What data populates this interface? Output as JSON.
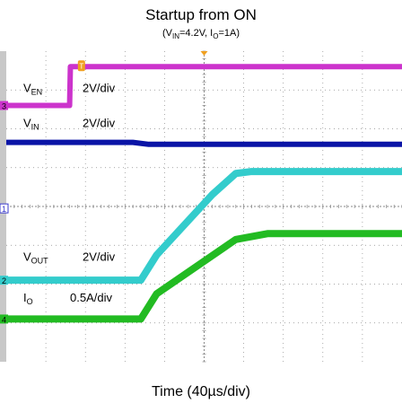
{
  "title": "Startup from ON",
  "subtitle": {
    "v_in_label": "V",
    "v_in_sub": "IN",
    "v_in_value": "=4.2V,  I",
    "i_o_sub": "O",
    "i_o_value": "=1A)",
    "open_paren": "("
  },
  "xlabel": "Time (40µs/div)",
  "chart_data": {
    "type": "line",
    "title": "Startup from ON",
    "xlabel": "Time (40µs/div)",
    "x_unit": "div",
    "xlim": [
      0,
      10
    ],
    "ylim": [
      0,
      8
    ],
    "grid": true,
    "series": [
      {
        "name": "V_EN",
        "color": "#cc33cc",
        "marker": "3",
        "label_main": "V",
        "label_sub": "EN",
        "scale": "2V/div",
        "x": [
          0,
          1.6,
          1.62,
          10
        ],
        "y": [
          6.6,
          6.6,
          7.6,
          7.6
        ]
      },
      {
        "name": "V_IN",
        "color": "#0a14a6",
        "marker": "",
        "label_main": "V",
        "label_sub": "IN",
        "scale": "2V/div",
        "x": [
          0,
          3.2,
          3.6,
          10
        ],
        "y": [
          5.65,
          5.65,
          5.6,
          5.6
        ]
      },
      {
        "name": "V_OUT",
        "color": "#33cccc",
        "marker": "2",
        "label_main": "V",
        "label_sub": "OUT",
        "scale": "2V/div",
        "x": [
          0,
          3.4,
          3.8,
          5.2,
          5.8,
          6.2,
          10
        ],
        "y": [
          2.1,
          2.1,
          2.75,
          4.3,
          4.85,
          4.9,
          4.9
        ]
      },
      {
        "name": "I_O",
        "color": "#22bb22",
        "marker": "4",
        "label_main": "I",
        "label_sub": "O",
        "scale": "0.5A/div",
        "x": [
          0,
          3.4,
          3.8,
          5.8,
          6.6,
          10
        ],
        "y": [
          1.1,
          1.1,
          1.75,
          3.15,
          3.3,
          3.3
        ]
      }
    ],
    "trigger_marker": "T",
    "channel1_marker": "1",
    "colors": {
      "background": "#ffffff",
      "grid": "#8a8a8a",
      "left_strip": "#c8c8c8",
      "trigger": "#f0a020"
    }
  }
}
